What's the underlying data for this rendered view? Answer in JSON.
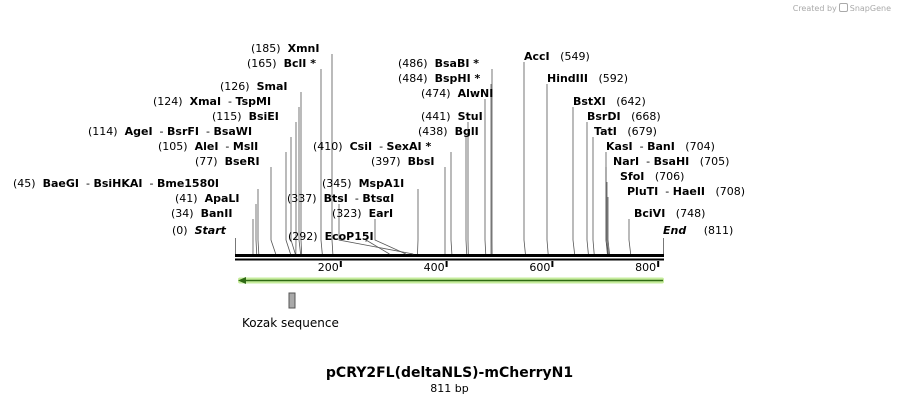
{
  "credit": {
    "prefix": "Created by",
    "brand": "SnapGene"
  },
  "map": {
    "title": "pCRY2FL(deltaNLS)-mCherryN1",
    "length_label": "811 bp",
    "length_bp": 811,
    "ruler_ticks": [
      "200",
      "400",
      "600",
      "800"
    ],
    "start": {
      "pos": "(0)",
      "label": "Start"
    },
    "end": {
      "label": "End",
      "pos": "(811)"
    },
    "feature": {
      "label": "Kozak sequence"
    }
  },
  "sites": [
    {
      "pos": "(185)",
      "names": [
        "XmnI"
      ]
    },
    {
      "pos": "(165)",
      "names": [
        "BclI *"
      ]
    },
    {
      "pos": "(126)",
      "names": [
        "SmaI"
      ]
    },
    {
      "pos": "(124)",
      "names": [
        "XmaI",
        "TspMI"
      ]
    },
    {
      "pos": "(115)",
      "names": [
        "BsiEI"
      ]
    },
    {
      "pos": "(114)",
      "names": [
        "AgeI",
        "BsrFI",
        "BsaWI"
      ]
    },
    {
      "pos": "(105)",
      "names": [
        "AleI",
        "MslI"
      ]
    },
    {
      "pos": "(77)",
      "names": [
        "BseRI"
      ]
    },
    {
      "pos": "(45)",
      "names": [
        "BaeGI",
        "BsiHKAI",
        "Bme1580I"
      ]
    },
    {
      "pos": "(41)",
      "names": [
        "ApaLI"
      ]
    },
    {
      "pos": "(34)",
      "names": [
        "BanII"
      ]
    },
    {
      "pos": "(337)",
      "names": [
        "BtsI",
        "BtsαI"
      ]
    },
    {
      "pos": "(323)",
      "names": [
        "EarI"
      ]
    },
    {
      "pos": "(292)",
      "names": [
        "EcoP15I"
      ]
    },
    {
      "pos": "(410)",
      "names": [
        "CsiI",
        "SexAI *"
      ]
    },
    {
      "pos": "(345)",
      "names": [
        "MspA1I"
      ]
    },
    {
      "pos": "(397)",
      "names": [
        "BbsI"
      ]
    },
    {
      "pos": "(438)",
      "names": [
        "BglI"
      ]
    },
    {
      "pos": "(441)",
      "names": [
        "StuI"
      ]
    },
    {
      "pos": "(474)",
      "names": [
        "AlwNI"
      ]
    },
    {
      "pos": "(484)",
      "names": [
        "BspHI *"
      ]
    },
    {
      "pos": "(486)",
      "names": [
        "BsaBI *"
      ]
    },
    {
      "pos": "(549)",
      "names": [
        "AccI"
      ]
    },
    {
      "pos": "(592)",
      "names": [
        "HindIII"
      ]
    },
    {
      "pos": "(642)",
      "names": [
        "BstXI"
      ]
    },
    {
      "pos": "(668)",
      "names": [
        "BsrDI"
      ]
    },
    {
      "pos": "(679)",
      "names": [
        "TatI"
      ]
    },
    {
      "pos": "(704)",
      "names": [
        "KasI",
        "BanI"
      ]
    },
    {
      "pos": "(705)",
      "names": [
        "NarI",
        "BsaHI"
      ]
    },
    {
      "pos": "(706)",
      "names": [
        "SfoI"
      ]
    },
    {
      "pos": "(708)",
      "names": [
        "PluTI",
        "HaeII"
      ]
    },
    {
      "pos": "(748)",
      "names": [
        "BciVI"
      ]
    }
  ]
}
